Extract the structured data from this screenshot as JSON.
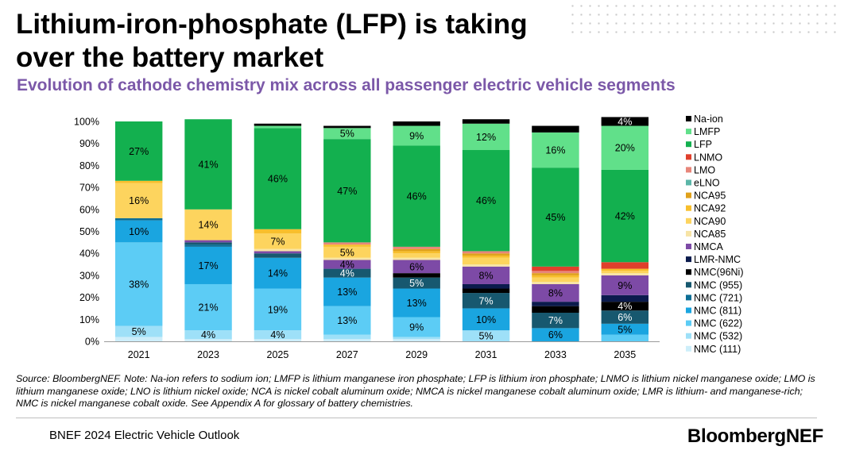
{
  "header": {
    "title": "Lithium-iron-phosphate (LFP) is taking over the battery market",
    "subtitle": "Evolution of cathode chemistry mix across all passenger electric vehicle segments"
  },
  "footer": {
    "source": "Source: BloombergNEF. Note: Na-ion refers to sodium ion; LMFP is lithium manganese iron phosphate; LFP is lithium iron phosphate; LNMO is lithium nickel manganese oxide; LMO is lithium manganese oxide; LNO is lithium nickel oxide; NCA is nickel cobalt aluminum oxide; NMCA is nickel manganese cobalt aluminum oxide; LMR is lithium- and manganese-rich; NMC is nickel manganese cobalt oxide. See Appendix A for glossary of battery chemistries.",
    "report": "BNEF 2024 Electric Vehicle Outlook",
    "brand": "BloombergNEF"
  },
  "chart_data": {
    "type": "bar",
    "stacked": true,
    "categories": [
      "2021",
      "2023",
      "2025",
      "2027",
      "2029",
      "2031",
      "2033",
      "2035"
    ],
    "ylim": [
      0,
      100
    ],
    "yticks": [
      "0%",
      "10%",
      "20%",
      "30%",
      "40%",
      "50%",
      "60%",
      "70%",
      "80%",
      "90%",
      "100%"
    ],
    "legend_position": "right",
    "grid": false,
    "series": [
      {
        "name": "NMC (111)",
        "color": "#cdeefa",
        "values": [
          2,
          1,
          1,
          1,
          1,
          0,
          0,
          0
        ],
        "labels": [
          "",
          "",
          "",
          "",
          "",
          "",
          "",
          ""
        ]
      },
      {
        "name": "NMC (532)",
        "color": "#9ee0f8",
        "values": [
          5,
          4,
          4,
          2,
          1,
          5,
          0,
          0
        ],
        "labels": [
          "5%",
          "4%",
          "4%",
          "",
          "",
          "5%",
          "",
          ""
        ]
      },
      {
        "name": "NMC (622)",
        "color": "#5cccf5",
        "values": [
          38,
          21,
          19,
          13,
          9,
          0,
          0,
          3
        ],
        "labels": [
          "38%",
          "21%",
          "19%",
          "13%",
          "9%",
          "",
          "",
          ""
        ]
      },
      {
        "name": "NMC (811)",
        "color": "#1aa5e0",
        "values": [
          10,
          17,
          14,
          13,
          13,
          10,
          6,
          5
        ],
        "labels": [
          "10%",
          "17%",
          "14%",
          "13%",
          "13%",
          "10%",
          "6%",
          "5%"
        ]
      },
      {
        "name": "NMC (721)",
        "color": "#0d6e95",
        "values": [
          1,
          1,
          0,
          0,
          0,
          0,
          0,
          0
        ],
        "labels": [
          "",
          "",
          "",
          "",
          "",
          "",
          "",
          ""
        ]
      },
      {
        "name": "NMC (955)",
        "color": "#17586f",
        "values": [
          0,
          1,
          2,
          4,
          5,
          7,
          7,
          6
        ],
        "labels": [
          "",
          "",
          "",
          "4%",
          "5%",
          "7%",
          "7%",
          "6%"
        ]
      },
      {
        "name": "NMC(96Ni)",
        "color": "#000000",
        "values": [
          0,
          0,
          0,
          0,
          2,
          2,
          3,
          4
        ],
        "labels": [
          "",
          "",
          "",
          "",
          "",
          "",
          "",
          "4%"
        ]
      },
      {
        "name": "LMR-NMC",
        "color": "#0b1b4d",
        "values": [
          0,
          0,
          0,
          0,
          0,
          2,
          2,
          3
        ],
        "labels": [
          "",
          "",
          "",
          "",
          "",
          "",
          "",
          ""
        ]
      },
      {
        "name": "NMCA",
        "color": "#7d4aa6",
        "values": [
          0,
          1,
          1,
          4,
          6,
          8,
          8,
          9
        ],
        "labels": [
          "",
          "",
          "",
          "4%",
          "6%",
          "8%",
          "8%",
          "9%"
        ]
      },
      {
        "name": "NCA85",
        "color": "#f7e4a5",
        "values": [
          0,
          0,
          1,
          1,
          1,
          1,
          1,
          1
        ],
        "labels": [
          "",
          "",
          "",
          "",
          "",
          "",
          "",
          ""
        ]
      },
      {
        "name": "NCA90",
        "color": "#fdd45e",
        "values": [
          16,
          14,
          7,
          5,
          2,
          3,
          2,
          1
        ],
        "labels": [
          "16%",
          "14%",
          "7%",
          "5%",
          "",
          "",
          "",
          ""
        ]
      },
      {
        "name": "NCA92",
        "color": "#f8bf2c",
        "values": [
          1,
          0,
          2,
          1,
          1,
          1,
          1,
          1
        ],
        "labels": [
          "",
          "",
          "",
          "",
          "",
          "",
          "",
          ""
        ]
      },
      {
        "name": "NCA95",
        "color": "#e0a11b",
        "values": [
          0,
          0,
          0,
          0,
          1,
          1,
          1,
          0
        ],
        "labels": [
          "",
          "",
          "",
          "",
          "",
          "",
          "",
          ""
        ]
      },
      {
        "name": "eLNO",
        "color": "#5bb6a8",
        "values": [
          0,
          0,
          0,
          0,
          0,
          0,
          0,
          0
        ],
        "labels": [
          "",
          "",
          "",
          "",
          "",
          "",
          "",
          ""
        ]
      },
      {
        "name": "LMO",
        "color": "#e8867a",
        "values": [
          0,
          0,
          0,
          1,
          1,
          1,
          1,
          0
        ],
        "labels": [
          "",
          "",
          "",
          "",
          "",
          "",
          "",
          ""
        ]
      },
      {
        "name": "LNMO",
        "color": "#e0402c",
        "values": [
          0,
          0,
          0,
          0,
          0,
          0,
          2,
          3
        ],
        "labels": [
          "",
          "",
          "",
          "",
          "",
          "",
          "",
          ""
        ]
      },
      {
        "name": "LFP",
        "color": "#13b04f",
        "values": [
          27,
          41,
          46,
          47,
          46,
          46,
          45,
          42
        ],
        "labels": [
          "27%",
          "41%",
          "46%",
          "47%",
          "46%",
          "46%",
          "45%",
          "42%"
        ]
      },
      {
        "name": "LMFP",
        "color": "#61e08a",
        "values": [
          0,
          0,
          1,
          5,
          9,
          12,
          16,
          20
        ],
        "labels": [
          "",
          "",
          "",
          "5%",
          "9%",
          "12%",
          "16%",
          "20%"
        ]
      },
      {
        "name": "Na-ion",
        "color": "#000000",
        "values": [
          0,
          0,
          1,
          1,
          2,
          2,
          3,
          4
        ],
        "labels": [
          "",
          "",
          "",
          "",
          "",
          "",
          "",
          "4%"
        ]
      }
    ]
  }
}
